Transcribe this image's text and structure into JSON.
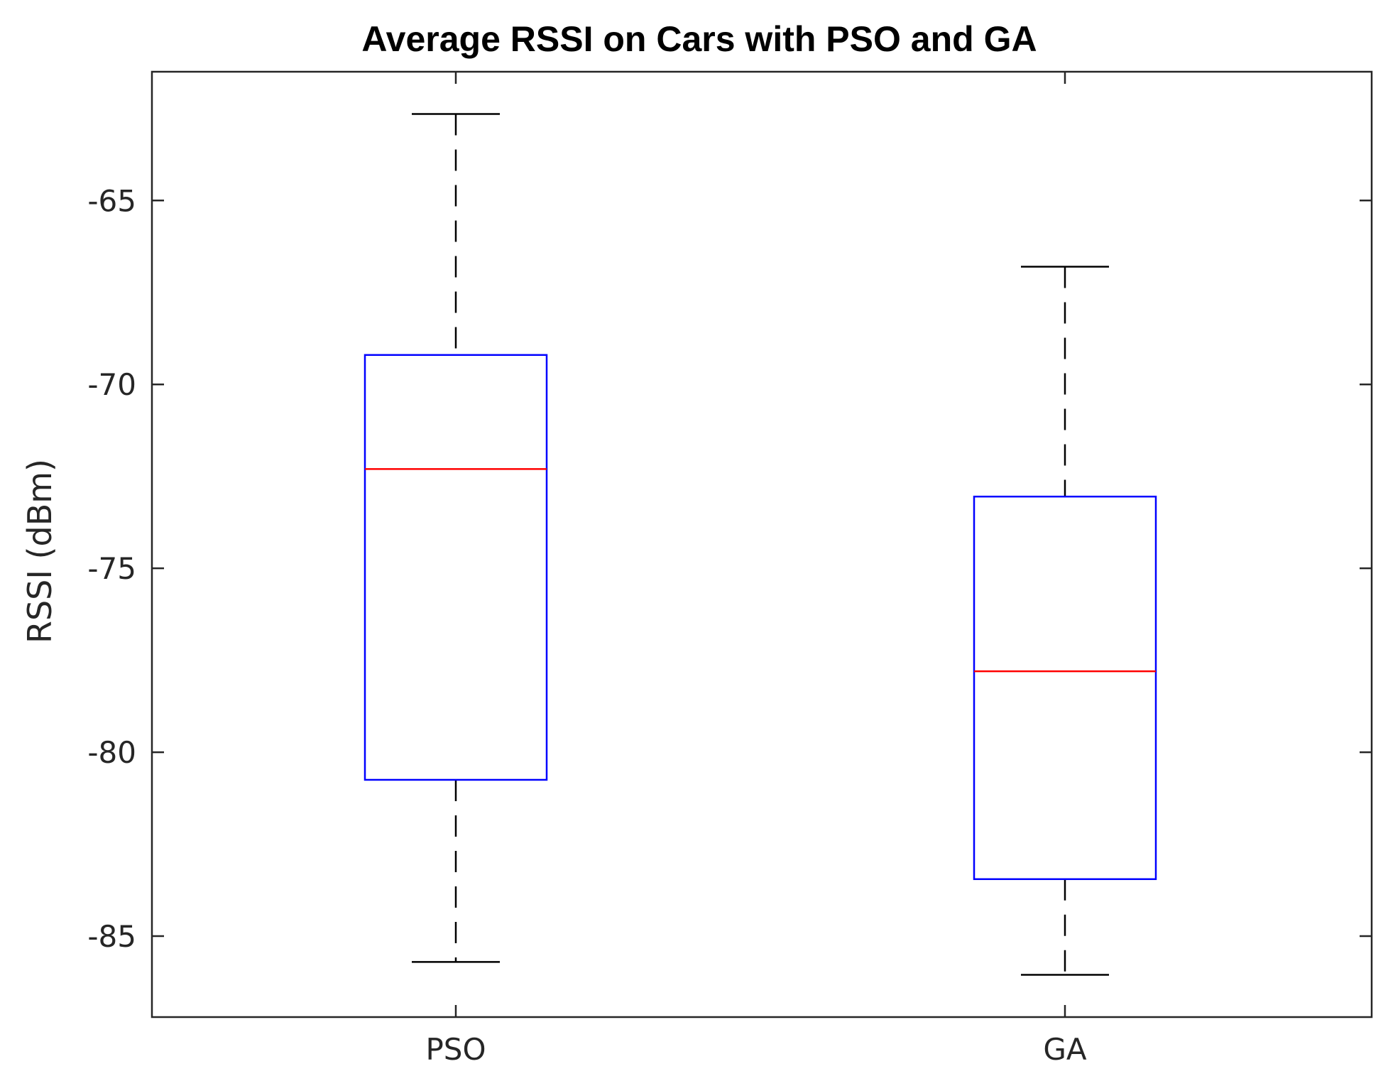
{
  "chart_data": {
    "type": "boxplot",
    "title": "Average RSSI on Cars with PSO and GA",
    "xlabel": "",
    "ylabel": "RSSI (dBm)",
    "ylim": [
      -87.2,
      -61.5
    ],
    "yticks": [
      -85,
      -80,
      -75,
      -70,
      -65
    ],
    "ytick_labels": [
      "-85",
      "-80",
      "-75",
      "-70",
      "-65"
    ],
    "categories": [
      "PSO",
      "GA"
    ],
    "boxes": [
      {
        "name": "PSO",
        "whisker_low": -85.7,
        "q1": -80.75,
        "median": -72.3,
        "q3": -69.2,
        "whisker_high": -62.65
      },
      {
        "name": "GA",
        "whisker_low": -86.05,
        "q1": -83.45,
        "median": -77.8,
        "q3": -73.05,
        "whisker_high": -66.8
      }
    ],
    "grid": false,
    "colors": {
      "box": "#0000ff",
      "median": "#ff0000",
      "whisker": "#000000",
      "axis": "#262626"
    }
  }
}
